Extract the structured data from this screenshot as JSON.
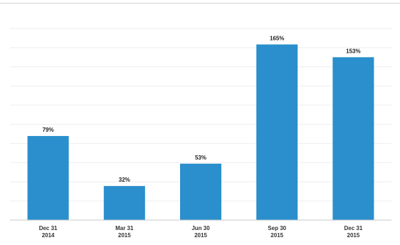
{
  "chart_data": {
    "type": "bar",
    "title": "",
    "xlabel": "",
    "ylabel": "",
    "categories": [
      [
        "Dec 31",
        "2014"
      ],
      [
        "Mar 31",
        "2015"
      ],
      [
        "Jun 30",
        "2015"
      ],
      [
        "Sep 30",
        "2015"
      ],
      [
        "Dec 31",
        "2015"
      ]
    ],
    "values": [
      79,
      32,
      53,
      165,
      153
    ],
    "value_labels": [
      "79%",
      "32%",
      "53%",
      "165%",
      "153%"
    ],
    "ylim": [
      0,
      180
    ],
    "grid": true,
    "legend": "none",
    "bar_color": "#2a8fcc"
  }
}
